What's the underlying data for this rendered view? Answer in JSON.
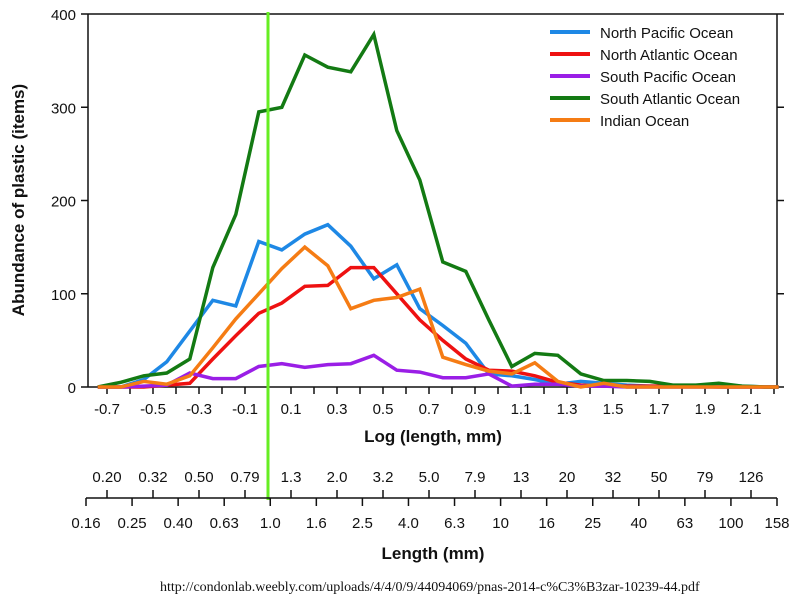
{
  "chart_data": {
    "type": "line",
    "title": "",
    "xlabel": "Log (length, mm)",
    "ylabel": "Abundance of plastic (items)",
    "ylim": [
      0,
      400
    ],
    "xlim": [
      -0.78,
      2.22
    ],
    "yticks": [
      0,
      100,
      200,
      300,
      400
    ],
    "xtick_labels": [
      "-0.7",
      "-0.5",
      "-0.3",
      "-0.1",
      "0.1",
      "0.3",
      "0.5",
      "0.7",
      "0.9",
      "1.1",
      "1.3",
      "1.5",
      "1.7",
      "1.9",
      "2.1"
    ],
    "xtick_values": [
      -0.7,
      -0.5,
      -0.3,
      -0.1,
      0.1,
      0.3,
      0.5,
      0.7,
      0.9,
      1.1,
      1.3,
      1.5,
      1.7,
      1.9,
      2.1
    ],
    "grid": false,
    "legend_position": "top-right",
    "reference_line": {
      "x": 0.0,
      "color": "#66ee22",
      "label": "1.0 mm"
    },
    "x": [
      -0.74,
      -0.64,
      -0.54,
      -0.44,
      -0.34,
      -0.24,
      -0.14,
      -0.04,
      0.06,
      0.16,
      0.26,
      0.36,
      0.46,
      0.56,
      0.66,
      0.76,
      0.86,
      0.96,
      1.06,
      1.16,
      1.26,
      1.36,
      1.46,
      1.56,
      1.66,
      1.76,
      1.86,
      1.96,
      2.06,
      2.16,
      2.22
    ],
    "series": [
      {
        "name": "North Pacific Ocean",
        "color": "#1e88e5",
        "values": [
          0,
          0,
          8,
          27,
          60,
          93,
          87,
          156,
          147,
          164,
          174,
          151,
          116,
          131,
          84,
          66,
          47,
          14,
          12,
          8,
          3,
          6,
          4,
          2,
          1,
          1,
          1,
          1,
          1,
          0,
          0
        ]
      },
      {
        "name": "North Atlantic Ocean",
        "color": "#ee1111",
        "values": [
          0,
          0,
          0,
          2,
          4,
          30,
          55,
          79,
          90,
          108,
          109,
          128,
          128,
          100,
          72,
          50,
          30,
          18,
          17,
          12,
          5,
          2,
          1,
          1,
          1,
          1,
          1,
          0,
          0,
          0,
          0
        ]
      },
      {
        "name": "South Pacific Ocean",
        "color": "#9a1ee6",
        "values": [
          0,
          0,
          1,
          2,
          15,
          9,
          9,
          22,
          25,
          21,
          24,
          25,
          34,
          18,
          16,
          10,
          10,
          14,
          1,
          3,
          3,
          1,
          1,
          0,
          0,
          0,
          0,
          0,
          0,
          0,
          0
        ]
      },
      {
        "name": "South Atlantic Ocean",
        "color": "#137a13",
        "values": [
          0,
          5,
          12,
          15,
          30,
          128,
          185,
          295,
          300,
          356,
          343,
          338,
          378,
          275,
          222,
          134,
          124,
          72,
          22,
          36,
          34,
          14,
          7,
          7,
          6,
          2,
          2,
          4,
          1,
          0,
          0
        ]
      },
      {
        "name": "Indian Ocean",
        "color": "#f57c14",
        "values": [
          0,
          0,
          6,
          3,
          12,
          42,
          73,
          100,
          127,
          150,
          130,
          84,
          93,
          96,
          105,
          32,
          24,
          17,
          14,
          26,
          6,
          0,
          4,
          0,
          0,
          0,
          0,
          0,
          0,
          0,
          0
        ]
      }
    ],
    "secondary_axes": [
      {
        "name": "length-upper",
        "tick_labels": [
          "0.20",
          "0.32",
          "0.50",
          "0.79",
          "1.3",
          "2.0",
          "3.2",
          "5.0",
          "7.9",
          "13",
          "20",
          "32",
          "50",
          "79",
          "126"
        ]
      },
      {
        "name": "length-lower",
        "xlabel": "Length (mm)",
        "tick_labels": [
          "0.16",
          "0.25",
          "0.40",
          "0.63",
          "1.0",
          "1.6",
          "2.5",
          "4.0",
          "6.3",
          "10",
          "16",
          "25",
          "40",
          "63",
          "100",
          "158"
        ]
      }
    ]
  },
  "source_text": "http://condonlab.weebly.com/uploads/4/4/0/9/44094069/pnas-2014-c%C3%B3zar-10239-44.pdf"
}
